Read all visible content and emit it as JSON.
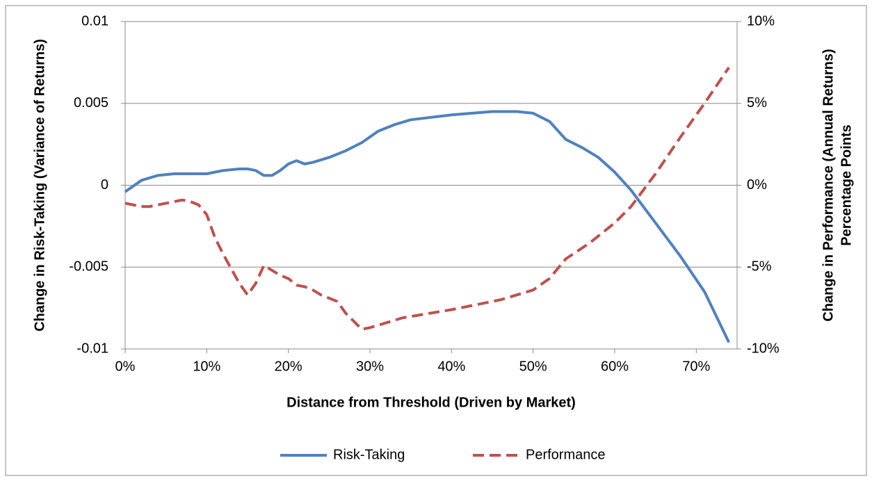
{
  "chart_data": {
    "type": "line",
    "xlabel": "Distance from Threshold (Driven by Market)",
    "ylabel": "Change in Risk-Taking (Variance of Returns)",
    "y2label": [
      "Change in Performance (Annual Returns)",
      "Percentage Points"
    ],
    "xlim": [
      0,
      75
    ],
    "xticks": [
      {
        "value": 0,
        "label": "0%"
      },
      {
        "value": 10,
        "label": "10%"
      },
      {
        "value": 20,
        "label": "20%"
      },
      {
        "value": 30,
        "label": "30%"
      },
      {
        "value": 40,
        "label": "40%"
      },
      {
        "value": 50,
        "label": "50%"
      },
      {
        "value": 60,
        "label": "60%"
      },
      {
        "value": 70,
        "label": "70%"
      }
    ],
    "ylim": [
      -0.01,
      0.01
    ],
    "yticks": [
      -0.01,
      -0.005,
      0,
      0.005,
      0.01
    ],
    "y2lim": [
      -10,
      10
    ],
    "y2ticks": [
      {
        "value": -10,
        "label": "-10%"
      },
      {
        "value": -5,
        "label": "-5%"
      },
      {
        "value": 0,
        "label": "0%"
      },
      {
        "value": 5,
        "label": "5%"
      },
      {
        "value": 10,
        "label": "10%"
      }
    ],
    "grid": true,
    "legend": "bottom",
    "series": [
      {
        "name": "Risk-Taking",
        "color": "#4f81bd",
        "dash": false,
        "x": [
          0,
          2,
          4,
          6,
          8,
          10,
          12,
          14,
          15,
          16,
          17,
          18,
          19,
          20,
          21,
          22,
          23,
          25,
          27,
          29,
          31,
          33,
          35,
          40,
          45,
          48,
          50,
          52,
          54,
          56,
          58,
          60,
          62,
          65,
          68,
          71,
          74
        ],
        "values": [
          -0.0004,
          0.0003,
          0.0006,
          0.0007,
          0.0007,
          0.0007,
          0.0009,
          0.001,
          0.001,
          0.0009,
          0.0006,
          0.0006,
          0.0009,
          0.0013,
          0.0015,
          0.0013,
          0.0014,
          0.0017,
          0.0021,
          0.0026,
          0.0033,
          0.0037,
          0.004,
          0.0043,
          0.0045,
          0.0045,
          0.0044,
          0.0039,
          0.0028,
          0.0023,
          0.0017,
          0.0008,
          -0.0003,
          -0.0023,
          -0.0043,
          -0.0065,
          -0.0096
        ]
      },
      {
        "name": "Performance",
        "color": "#c0504d",
        "dash": true,
        "axis": "y2",
        "x": [
          0,
          1,
          2,
          3,
          4,
          5,
          6,
          7,
          8,
          9,
          10,
          11,
          12,
          13,
          14,
          15,
          16,
          17,
          18,
          19,
          20,
          21,
          22,
          23,
          24,
          25,
          26,
          27,
          28,
          29,
          30,
          34,
          40,
          46,
          50,
          52,
          54,
          57,
          60,
          62,
          65,
          68,
          71,
          74
        ],
        "values": [
          -1.1,
          -1.2,
          -1.3,
          -1.3,
          -1.2,
          -1.1,
          -1.0,
          -0.9,
          -1.0,
          -1.2,
          -1.8,
          -3.2,
          -4.2,
          -5.1,
          -6.0,
          -6.7,
          -6.0,
          -4.9,
          -5.2,
          -5.5,
          -5.7,
          -6.1,
          -6.2,
          -6.4,
          -6.7,
          -6.9,
          -7.1,
          -7.8,
          -8.3,
          -8.8,
          -8.7,
          -8.1,
          -7.6,
          -7.0,
          -6.4,
          -5.7,
          -4.5,
          -3.5,
          -2.3,
          -1.3,
          0.7,
          2.9,
          5.0,
          7.2
        ]
      }
    ]
  }
}
